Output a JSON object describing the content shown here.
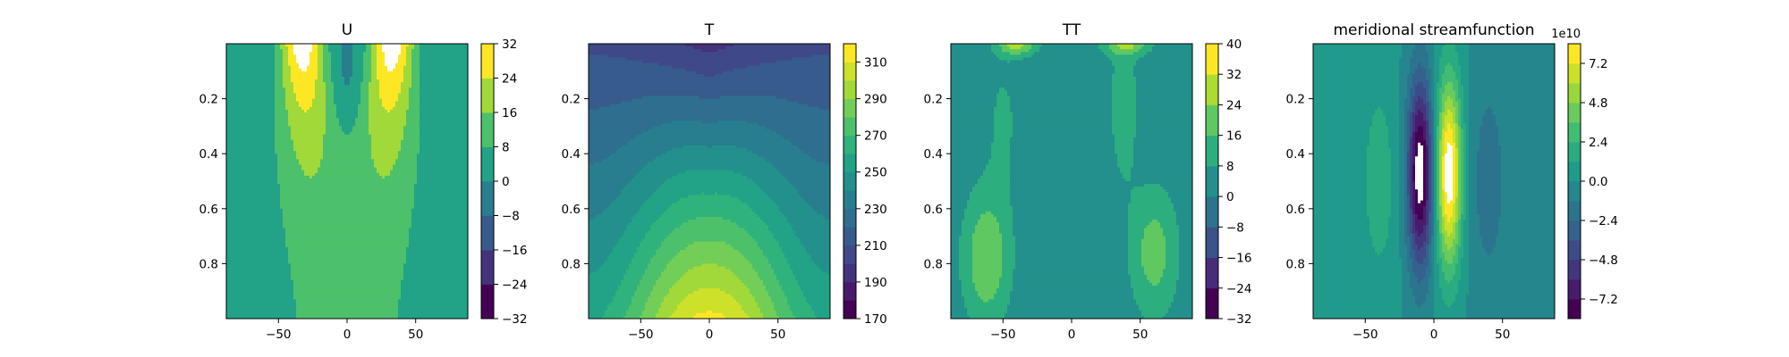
{
  "chart_data": [
    {
      "type": "heatmap",
      "title": "U",
      "xlabel": "",
      "ylabel": "",
      "xlim": [
        -88,
        88
      ],
      "ylim": [
        0,
        1
      ],
      "x_ticks": [
        -50,
        0,
        50
      ],
      "y_ticks": [
        0.2,
        0.4,
        0.6,
        0.8
      ],
      "colorbar": {
        "levels": [
          -32,
          -24,
          -16,
          -8,
          0,
          8,
          16,
          24,
          32
        ],
        "ticks": [
          -32,
          -24,
          -16,
          -8,
          0,
          8,
          16,
          24,
          32
        ],
        "offset_label": ""
      }
    },
    {
      "type": "heatmap",
      "title": "T",
      "xlabel": "",
      "ylabel": "",
      "xlim": [
        -88,
        88
      ],
      "ylim": [
        0,
        1
      ],
      "x_ticks": [
        -50,
        0,
        50
      ],
      "y_ticks": [
        0.2,
        0.4,
        0.6,
        0.8
      ],
      "colorbar": {
        "levels": [
          170,
          180,
          190,
          200,
          210,
          220,
          230,
          240,
          250,
          260,
          270,
          280,
          290,
          300,
          310,
          320
        ],
        "ticks": [
          170,
          190,
          210,
          230,
          250,
          270,
          290,
          310
        ],
        "offset_label": ""
      }
    },
    {
      "type": "heatmap",
      "title": "TT",
      "xlabel": "",
      "ylabel": "",
      "xlim": [
        -88,
        88
      ],
      "ylim": [
        0,
        1
      ],
      "x_ticks": [
        -50,
        0,
        50
      ],
      "y_ticks": [
        0.2,
        0.4,
        0.6,
        0.8
      ],
      "colorbar": {
        "levels": [
          -32,
          -24,
          -16,
          -8,
          0,
          8,
          16,
          24,
          32,
          40
        ],
        "ticks": [
          -32,
          -24,
          -16,
          -8,
          0,
          8,
          16,
          24,
          32,
          40
        ],
        "offset_label": ""
      }
    },
    {
      "type": "heatmap",
      "title": "meridional streamfunction",
      "xlabel": "",
      "ylabel": "",
      "xlim": [
        -88,
        88
      ],
      "ylim": [
        0,
        1
      ],
      "x_ticks": [
        -50,
        0,
        50
      ],
      "y_ticks": [
        0.2,
        0.4,
        0.6,
        0.8
      ],
      "colorbar": {
        "levels": [
          -8.4,
          -7.2,
          -6.0,
          -4.8,
          -3.6,
          -2.4,
          -1.2,
          0.0,
          1.2,
          2.4,
          3.6,
          4.8,
          6.0,
          7.2,
          8.4
        ],
        "ticks": [
          -7.2,
          -4.8,
          -2.4,
          0.0,
          2.4,
          4.8,
          7.2
        ],
        "offset_label": "1e10"
      }
    }
  ]
}
